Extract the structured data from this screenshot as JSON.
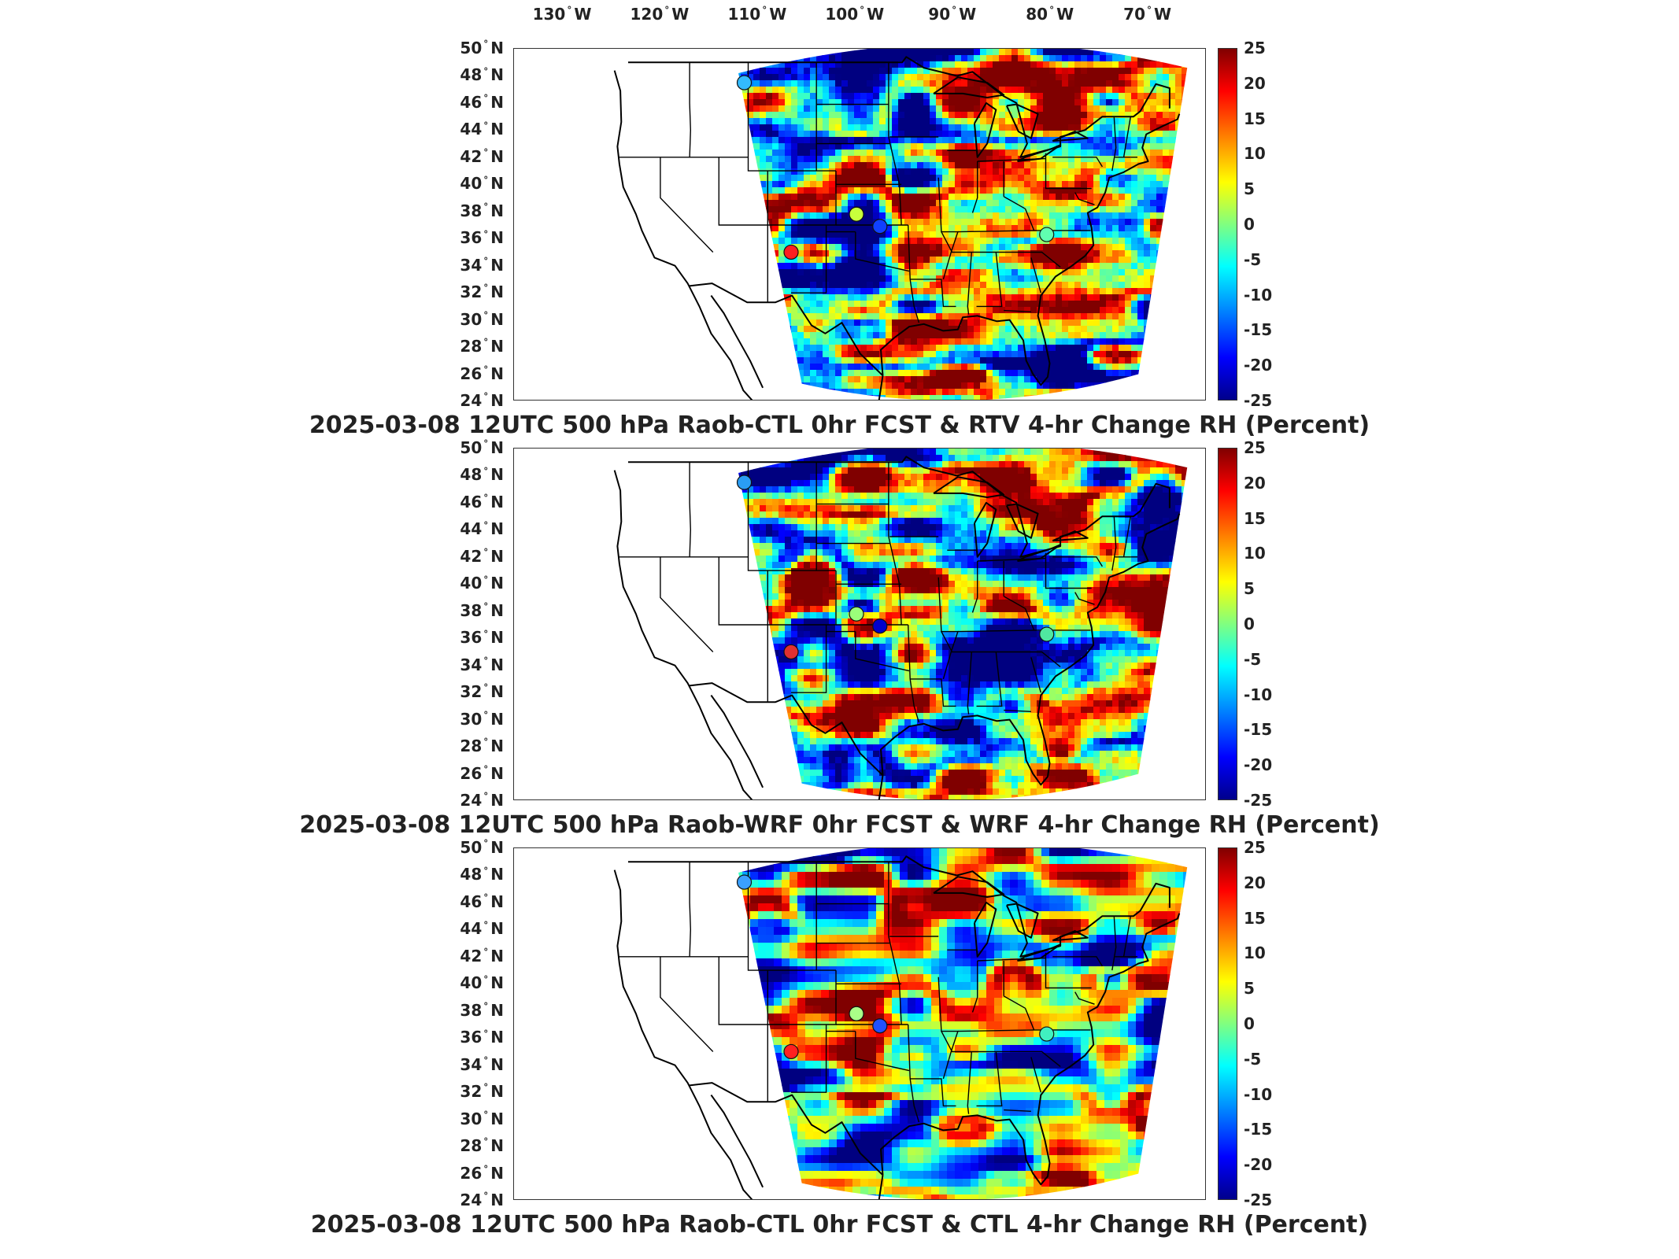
{
  "lon_labels": [
    "130",
    "120",
    "110",
    "100",
    "90",
    "80",
    "70"
  ],
  "lon_suffix": "W",
  "lat_labels": [
    "50",
    "48",
    "46",
    "44",
    "42",
    "40",
    "38",
    "36",
    "34",
    "32",
    "30",
    "28",
    "26",
    "24"
  ],
  "lat_suffix": "N",
  "degree_symbol": "°",
  "colorbar_ticks": [
    "25",
    "20",
    "15",
    "10",
    "5",
    "0",
    "-5",
    "-10",
    "-15",
    "-20",
    "-25"
  ],
  "colorbar": {
    "min": -25,
    "max": 25,
    "colormap": "jet"
  },
  "panels": [
    {
      "title": "2025-03-08 12UTC 500 hPa Raob-CTL 0hr FCST & RTV 4-hr Change RH (Percent)",
      "seed": 11,
      "smooth": false
    },
    {
      "title": "2025-03-08 12UTC 500 hPa Raob-WRF 0hr FCST & WRF 4-hr Change RH (Percent)",
      "seed": 23,
      "smooth": false
    },
    {
      "title": "2025-03-08 12UTC 500 hPa Raob-CTL 0hr FCST & CTL 4-hr Change RH (Percent)",
      "seed": 37,
      "smooth": true
    }
  ],
  "raob_markers": [
    {
      "name": "raob-great-falls",
      "lon": -111.4,
      "lat": 47.5,
      "colors": [
        "#33bbff",
        "#2a9df4",
        "#3aa0ff"
      ]
    },
    {
      "name": "raob-dodge-city",
      "lon": -99.9,
      "lat": 37.8,
      "colors": [
        "#c8ff3c",
        "#9bff7a",
        "#aaff88"
      ]
    },
    {
      "name": "raob-albuquerque",
      "lon": -106.6,
      "lat": 35.0,
      "colors": [
        "#ff2020",
        "#e03030",
        "#ff2020"
      ]
    },
    {
      "name": "raob-roanoke",
      "lon": -80.4,
      "lat": 36.3,
      "colors": [
        "#60ffb0",
        "#50e8a0",
        "#40f0c0"
      ]
    },
    {
      "name": "raob-oklahoma",
      "lon": -97.5,
      "lat": 36.9,
      "colors": [
        "#1040ff",
        "#0000cc",
        "#2050ff"
      ]
    }
  ]
}
